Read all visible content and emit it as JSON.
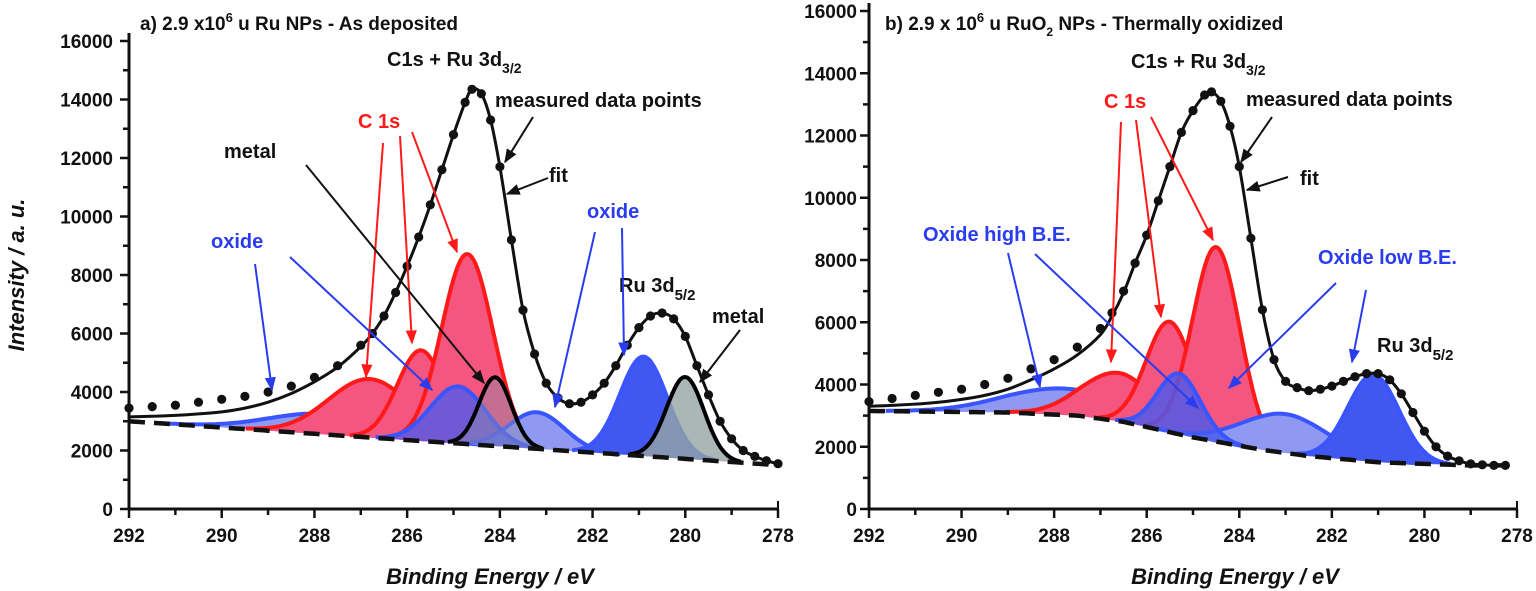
{
  "chart_data": [
    {
      "type": "line",
      "panel": "a",
      "title": {
        "prefix": "a) 2.9 x10",
        "sup": "6",
        "rest": " u Ru NPs - As deposited"
      },
      "xlabel": "Binding Energy / eV",
      "ylabel": "Intensity / a. u.",
      "xlim": [
        292,
        278
      ],
      "ylim": [
        0,
        16000
      ],
      "x_reversed": true,
      "xticks": [
        292,
        290,
        288,
        286,
        284,
        282,
        280,
        278
      ],
      "xtick_labels": [
        "292",
        "290",
        "288",
        "286",
        "284",
        "282",
        "280",
        "278"
      ],
      "yticks": [
        0,
        2000,
        4000,
        6000,
        8000,
        10000,
        12000,
        14000,
        16000
      ],
      "ytick_labels": [
        "0",
        "2000",
        "4000",
        "6000",
        "8000",
        "10000",
        "12000",
        "14000",
        "16000"
      ],
      "grid": false,
      "measured": {
        "x": [
          292,
          291.5,
          291,
          290.5,
          290,
          289.5,
          289,
          288.5,
          288,
          287.5,
          287,
          286.75,
          286.5,
          286.25,
          286,
          285.75,
          285.5,
          285.25,
          285,
          284.75,
          284.6,
          284.4,
          284.2,
          284,
          283.75,
          283.5,
          283.25,
          283,
          282.75,
          282.5,
          282.25,
          282,
          281.75,
          281.5,
          281.25,
          281,
          280.75,
          280.5,
          280.25,
          280,
          279.75,
          279.5,
          279.25,
          279,
          278.75,
          278.5,
          278.25,
          278
        ],
        "y": [
          3450,
          3500,
          3550,
          3650,
          3750,
          3850,
          4000,
          4200,
          4500,
          4900,
          5600,
          6000,
          6600,
          7400,
          8300,
          9300,
          10400,
          11600,
          12800,
          13900,
          14350,
          14200,
          13300,
          11700,
          9200,
          6800,
          5300,
          4300,
          3800,
          3600,
          3650,
          3900,
          4300,
          4900,
          5600,
          6200,
          6600,
          6700,
          6500,
          5900,
          4900,
          3900,
          3000,
          2400,
          2000,
          1800,
          1650,
          1550
        ]
      },
      "fit": {
        "x": [
          292,
          291.5,
          291,
          290.5,
          290,
          289.5,
          289,
          288.5,
          288,
          287.5,
          287,
          286.75,
          286.5,
          286.25,
          286,
          285.75,
          285.5,
          285.25,
          285,
          284.75,
          284.6,
          284.4,
          284.2,
          284,
          283.75,
          283.5,
          283.25,
          283,
          282.75,
          282.5,
          282.25,
          282,
          281.75,
          281.5,
          281.25,
          281,
          280.75,
          280.5,
          280.25,
          280,
          279.75,
          279.5,
          279.25,
          279,
          278.75,
          278.5,
          278.25,
          278
        ],
        "y": [
          3150,
          3170,
          3200,
          3250,
          3320,
          3450,
          3650,
          3950,
          4350,
          4850,
          5550,
          6000,
          6600,
          7400,
          8300,
          9300,
          10400,
          11600,
          12800,
          13900,
          14350,
          14200,
          13300,
          11700,
          9200,
          6800,
          5300,
          4300,
          3800,
          3600,
          3650,
          3900,
          4300,
          4900,
          5600,
          6200,
          6600,
          6700,
          6500,
          5900,
          4900,
          3900,
          3000,
          2400,
          2000,
          1800,
          1650,
          1550
        ]
      },
      "background": {
        "x": [
          292,
          278
        ],
        "y": [
          3000,
          1500
        ]
      },
      "components": [
        {
          "label": "oxide",
          "center": 287.8,
          "height": 700,
          "fwhm": 2.8,
          "fill": "#8f99f2",
          "stroke": "#3a55ff"
        },
        {
          "label": "C 1s",
          "center": 286.8,
          "height": 2000,
          "fwhm": 2.1,
          "fill": "#f4567f",
          "stroke": "#ff1a1a"
        },
        {
          "label": "C 1s",
          "center": 285.7,
          "height": 3100,
          "fwhm": 1.2,
          "fill": "#f4567f",
          "stroke": "#ff1a1a"
        },
        {
          "label": "C 1s",
          "center": 284.7,
          "height": 6500,
          "fwhm": 1.3,
          "fill": "#f4567f",
          "stroke": "#ff1a1a"
        },
        {
          "label": "oxide",
          "center": 283.2,
          "height": 1250,
          "fwhm": 1.4,
          "fill": "#8f99f2",
          "stroke": "#3a55ff"
        },
        {
          "label": "oxide",
          "center": 284.9,
          "height": 1950,
          "fwhm": 1.4,
          "fill": "rgba(70,90,240,0.75)",
          "stroke": "#3a55ff"
        },
        {
          "label": "metal",
          "center": 284.1,
          "height": 2350,
          "fwhm": 0.82,
          "fill": "rgba(140,140,170,0.45)",
          "stroke": "#000000"
        },
        {
          "label": "oxide",
          "center": 280.9,
          "height": 3400,
          "fwhm": 1.2,
          "fill": "#4058f0",
          "stroke": "#3a55ff"
        },
        {
          "label": "metal",
          "center": 280.0,
          "height": 2800,
          "fwhm": 0.95,
          "fill": "rgba(150,165,165,0.8)",
          "stroke": "#000000"
        }
      ],
      "annotations": {
        "peak_main": {
          "main": "C1s + Ru 3d",
          "sub": "3/2"
        },
        "measured": "measured data points",
        "fit": "fit",
        "c1s": "C 1s",
        "metal_left": "metal",
        "oxide_left": "oxide",
        "oxide_right": "oxide",
        "peak_ru": {
          "main": "Ru 3d",
          "sub": "5/2"
        },
        "metal_right": "metal"
      }
    },
    {
      "type": "line",
      "panel": "b",
      "title": {
        "prefix": "b) 2.9 x 10",
        "sup": "6",
        "mid": " u RuO",
        "sub": "2",
        "rest": " NPs - Thermally oxidized"
      },
      "xlabel": "Binding Energy / eV",
      "ylabel": "",
      "xlim": [
        292,
        278
      ],
      "ylim": [
        0,
        16000
      ],
      "x_reversed": true,
      "xticks": [
        292,
        290,
        288,
        286,
        284,
        282,
        280,
        278
      ],
      "xtick_labels": [
        "292",
        "290",
        "288",
        "286",
        "284",
        "282",
        "280",
        "278"
      ],
      "yticks": [
        0,
        2000,
        4000,
        6000,
        8000,
        10000,
        12000,
        14000,
        16000
      ],
      "ytick_labels": [
        "0",
        "2000",
        "4000",
        "6000",
        "8000",
        "10000",
        "12000",
        "14000",
        "16000"
      ],
      "grid": false,
      "measured": {
        "x": [
          292,
          291.5,
          291,
          290.5,
          290,
          289.5,
          289,
          288.5,
          288,
          287.5,
          287,
          286.75,
          286.5,
          286.25,
          286,
          285.75,
          285.5,
          285.25,
          285,
          284.75,
          284.6,
          284.4,
          284.2,
          284,
          283.75,
          283.5,
          283.25,
          283,
          282.75,
          282.5,
          282.25,
          282,
          281.75,
          281.5,
          281.25,
          281,
          280.75,
          280.5,
          280.25,
          280,
          279.75,
          279.5,
          279.25,
          279,
          278.75,
          278.5,
          278.25
        ],
        "y": [
          3450,
          3550,
          3650,
          3750,
          3850,
          4000,
          4200,
          4500,
          4800,
          5200,
          5800,
          6300,
          7000,
          7900,
          8800,
          9900,
          11000,
          12100,
          12800,
          13300,
          13400,
          13100,
          12300,
          11000,
          8700,
          6400,
          4800,
          4100,
          3900,
          3800,
          3850,
          3950,
          4100,
          4250,
          4350,
          4350,
          4150,
          3700,
          3100,
          2500,
          2000,
          1700,
          1550,
          1450,
          1420,
          1400,
          1400
        ]
      },
      "fit": {
        "x": [
          292,
          291.5,
          291,
          290.5,
          290,
          289.5,
          289,
          288.5,
          288,
          287.5,
          287,
          286.75,
          286.5,
          286.25,
          286,
          285.75,
          285.5,
          285.25,
          285,
          284.75,
          284.6,
          284.4,
          284.2,
          284,
          283.75,
          283.5,
          283.25,
          283,
          282.75,
          282.5,
          282.25,
          282,
          281.75,
          281.5,
          281.25,
          281,
          280.75,
          280.5,
          280.25,
          280,
          279.75,
          279.5,
          279.25,
          279,
          278.75,
          278.5,
          278.25
        ],
        "y": [
          3300,
          3330,
          3370,
          3430,
          3520,
          3650,
          3850,
          4150,
          4500,
          4950,
          5600,
          6200,
          6950,
          7900,
          8800,
          9900,
          11000,
          12100,
          12800,
          13300,
          13400,
          13100,
          12300,
          11000,
          8700,
          6400,
          4800,
          4100,
          3900,
          3800,
          3850,
          3950,
          4100,
          4250,
          4350,
          4350,
          4150,
          3700,
          3100,
          2500,
          2000,
          1700,
          1550,
          1450,
          1420,
          1400,
          1400
        ]
      },
      "background": {
        "x": [
          292,
          289,
          287.5,
          286.5,
          285,
          283.5,
          282.5,
          281,
          279,
          278.25
        ],
        "y": [
          3150,
          3100,
          3000,
          2800,
          2300,
          1900,
          1700,
          1500,
          1400,
          1400
        ]
      },
      "components": [
        {
          "label": "Oxide high B.E.",
          "center": 287.8,
          "height": 850,
          "fwhm": 3.0,
          "fill": "#8f99f2",
          "stroke": "#3a55ff"
        },
        {
          "label": "C 1s",
          "center": 286.6,
          "height": 1550,
          "fwhm": 1.9,
          "fill": "#f4567f",
          "stroke": "#ff1a1a"
        },
        {
          "label": "C 1s",
          "center": 285.5,
          "height": 3550,
          "fwhm": 1.2,
          "fill": "#f4567f",
          "stroke": "#ff1a1a"
        },
        {
          "label": "C 1s",
          "center": 284.5,
          "height": 6250,
          "fwhm": 1.2,
          "fill": "#f4567f",
          "stroke": "#ff1a1a"
        },
        {
          "label": "Oxide low B.E.",
          "center": 283.0,
          "height": 1250,
          "fwhm": 2.2,
          "fill": "#8f99f2",
          "stroke": "#3a55ff"
        },
        {
          "label": "Oxide high B.E.",
          "center": 285.3,
          "height": 1950,
          "fwhm": 1.1,
          "fill": "rgba(70,90,240,0.8)",
          "stroke": "#3a55ff"
        },
        {
          "label": "Oxide low B.E.",
          "center": 281.1,
          "height": 2800,
          "fwhm": 1.3,
          "fill": "#4058f0",
          "stroke": "#3a55ff"
        }
      ],
      "annotations": {
        "peak_main": {
          "main": "C1s + Ru 3d",
          "sub": "3/2"
        },
        "measured": "measured data points",
        "fit": "fit",
        "c1s": "C 1s",
        "oxide_high": "Oxide high B.E.",
        "oxide_low": "Oxide low B.E.",
        "peak_ru": {
          "main": "Ru 3d",
          "sub": "5/2"
        }
      }
    }
  ]
}
